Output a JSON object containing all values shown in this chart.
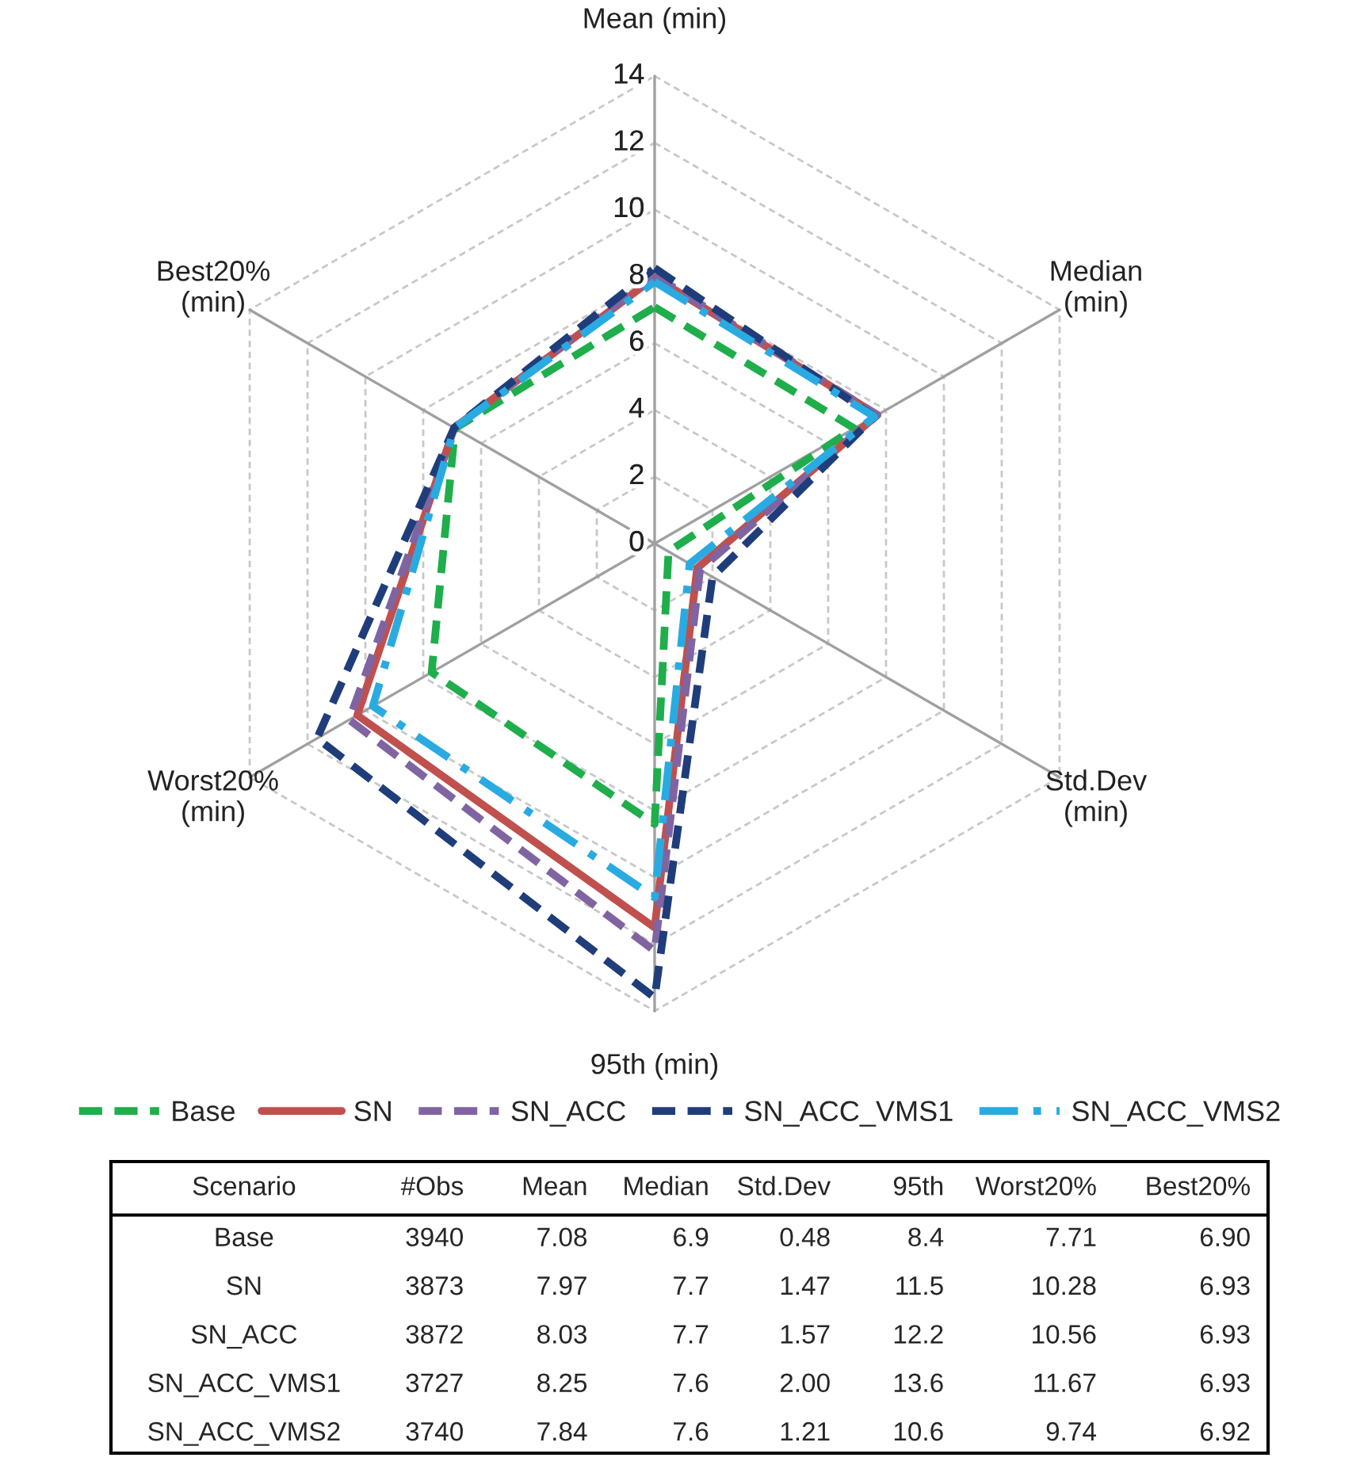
{
  "chart_data": [
    {
      "type": "radar",
      "categories": [
        "Mean (min)",
        "Median\n(min)",
        "Std.Dev\n(min)",
        "95th (min)",
        "Worst20%\n(min)",
        "Best20%\n(min)"
      ],
      "ylim": [
        0,
        14
      ],
      "yticks": [
        0,
        2,
        4,
        6,
        8,
        10,
        12,
        14
      ],
      "grid": true,
      "legend": "bottom",
      "series": [
        {
          "name": "Base",
          "color": "#1fae4b",
          "line_style": "dashed",
          "values": [
            7.08,
            6.9,
            0.48,
            8.4,
            7.71,
            6.9
          ]
        },
        {
          "name": "SN",
          "color": "#c0504d",
          "line_style": "solid",
          "values": [
            7.97,
            7.7,
            1.47,
            11.5,
            10.28,
            6.93
          ]
        },
        {
          "name": "SN_ACC",
          "color": "#8064a2",
          "line_style": "dashed",
          "values": [
            8.03,
            7.7,
            1.57,
            12.2,
            10.56,
            6.93
          ]
        },
        {
          "name": "SN_ACC_VMS1",
          "color": "#1f3d7a",
          "line_style": "dashed",
          "values": [
            8.25,
            7.6,
            2.0,
            13.6,
            11.67,
            6.93
          ]
        },
        {
          "name": "SN_ACC_VMS2",
          "color": "#29abe2",
          "line_style": "dashdot",
          "values": [
            7.84,
            7.6,
            1.21,
            10.6,
            9.74,
            6.92
          ]
        }
      ]
    },
    {
      "type": "other",
      "ylabel": "Scenario",
      "categories": [
        "#Obs",
        "Mean",
        "Median",
        "Std.Dev",
        "95th",
        "Worst20%",
        "Best20%"
      ],
      "y_categories": [
        "Base",
        "SN",
        "SN_ACC",
        "SN_ACC_VMS1",
        "SN_ACC_VMS2"
      ],
      "cell_labels": [
        [
          "3940",
          "7.08",
          "6.9",
          "0.48",
          "8.4",
          "7.71",
          "6.90"
        ],
        [
          "3873",
          "7.97",
          "7.7",
          "1.47",
          "11.5",
          "10.28",
          "6.93"
        ],
        [
          "3872",
          "8.03",
          "7.7",
          "1.57",
          "12.2",
          "10.56",
          "6.93"
        ],
        [
          "3727",
          "8.25",
          "7.6",
          "2.00",
          "13.6",
          "11.67",
          "6.93"
        ],
        [
          "3740",
          "7.84",
          "7.6",
          "1.21",
          "10.6",
          "9.74",
          "6.92"
        ]
      ]
    }
  ]
}
